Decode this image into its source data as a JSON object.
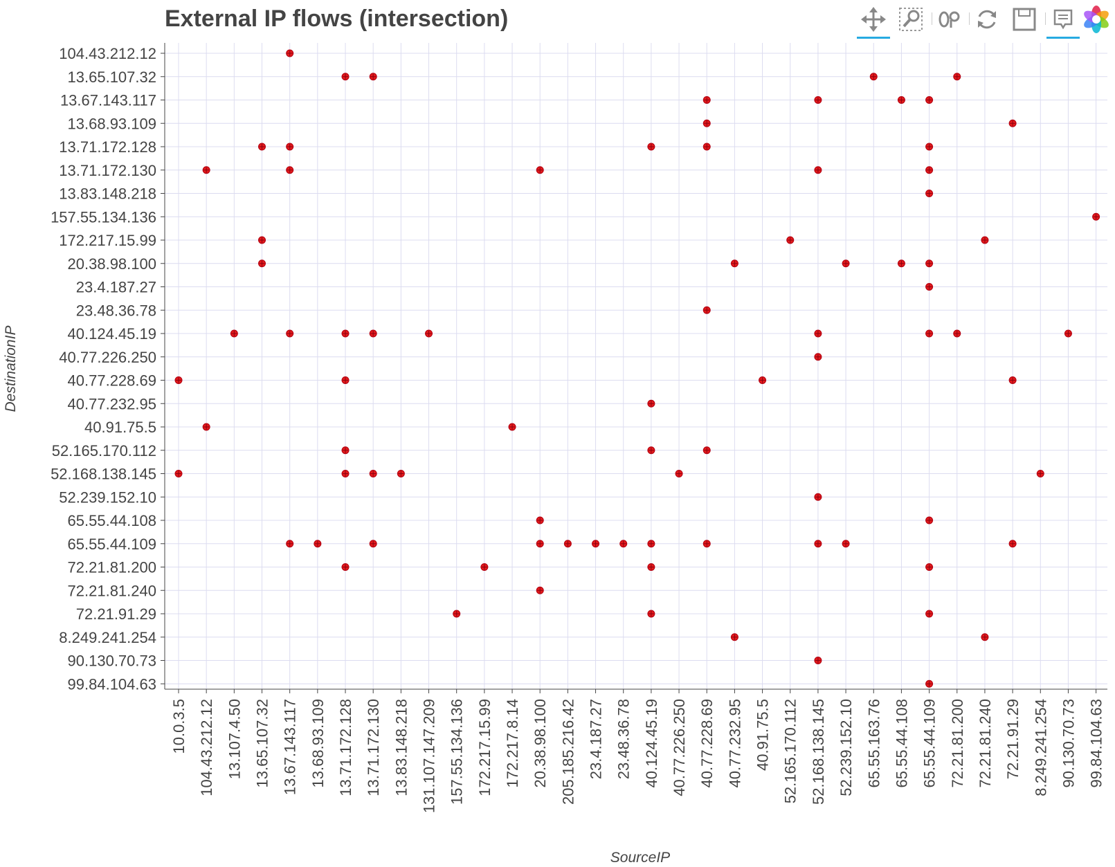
{
  "chart_data": {
    "type": "scatter",
    "title": "External IP flows (intersection)",
    "xlabel": "SourceIP",
    "ylabel": "DestinationIP",
    "grid": true,
    "marker_color": "#e31a1c",
    "grid_color": "#dcdcf0",
    "x_categories": [
      "10.0.3.5",
      "104.43.212.12",
      "13.107.4.50",
      "13.65.107.32",
      "13.67.143.117",
      "13.68.93.109",
      "13.71.172.128",
      "13.71.172.130",
      "13.83.148.218",
      "131.107.147.209",
      "157.55.134.136",
      "172.217.15.99",
      "172.217.8.14",
      "20.38.98.100",
      "205.185.216.42",
      "23.4.187.27",
      "23.48.36.78",
      "40.124.45.19",
      "40.77.226.250",
      "40.77.228.69",
      "40.77.232.95",
      "40.91.75.5",
      "52.165.170.112",
      "52.168.138.145",
      "52.239.152.10",
      "65.55.163.76",
      "65.55.44.108",
      "65.55.44.109",
      "72.21.81.200",
      "72.21.81.240",
      "72.21.91.29",
      "8.249.241.254",
      "90.130.70.73",
      "99.84.104.63"
    ],
    "y_categories": [
      "104.43.212.12",
      "13.65.107.32",
      "13.67.143.117",
      "13.68.93.109",
      "13.71.172.128",
      "13.71.172.130",
      "13.83.148.218",
      "157.55.134.136",
      "172.217.15.99",
      "20.38.98.100",
      "23.4.187.27",
      "23.48.36.78",
      "40.124.45.19",
      "40.77.226.250",
      "40.77.228.69",
      "40.77.232.95",
      "40.91.75.5",
      "52.165.170.112",
      "52.168.138.145",
      "52.239.152.10",
      "65.55.44.108",
      "65.55.44.109",
      "72.21.81.200",
      "72.21.81.240",
      "72.21.91.29",
      "8.249.241.254",
      "90.130.70.73",
      "99.84.104.63"
    ],
    "points": [
      {
        "x": "13.67.143.117",
        "y": "104.43.212.12"
      },
      {
        "x": "13.71.172.128",
        "y": "13.65.107.32"
      },
      {
        "x": "13.71.172.130",
        "y": "13.65.107.32"
      },
      {
        "x": "65.55.163.76",
        "y": "13.65.107.32"
      },
      {
        "x": "72.21.81.200",
        "y": "13.65.107.32"
      },
      {
        "x": "40.77.228.69",
        "y": "13.67.143.117"
      },
      {
        "x": "52.168.138.145",
        "y": "13.67.143.117"
      },
      {
        "x": "65.55.44.108",
        "y": "13.67.143.117"
      },
      {
        "x": "65.55.44.109",
        "y": "13.67.143.117"
      },
      {
        "x": "40.77.228.69",
        "y": "13.68.93.109"
      },
      {
        "x": "72.21.91.29",
        "y": "13.68.93.109"
      },
      {
        "x": "13.65.107.32",
        "y": "13.71.172.128"
      },
      {
        "x": "13.67.143.117",
        "y": "13.71.172.128"
      },
      {
        "x": "40.124.45.19",
        "y": "13.71.172.128"
      },
      {
        "x": "40.77.228.69",
        "y": "13.71.172.128"
      },
      {
        "x": "65.55.44.109",
        "y": "13.71.172.128"
      },
      {
        "x": "104.43.212.12",
        "y": "13.71.172.130"
      },
      {
        "x": "13.67.143.117",
        "y": "13.71.172.130"
      },
      {
        "x": "20.38.98.100",
        "y": "13.71.172.130"
      },
      {
        "x": "52.168.138.145",
        "y": "13.71.172.130"
      },
      {
        "x": "65.55.44.109",
        "y": "13.71.172.130"
      },
      {
        "x": "65.55.44.109",
        "y": "13.83.148.218"
      },
      {
        "x": "99.84.104.63",
        "y": "157.55.134.136"
      },
      {
        "x": "13.65.107.32",
        "y": "172.217.15.99"
      },
      {
        "x": "52.165.170.112",
        "y": "172.217.15.99"
      },
      {
        "x": "72.21.81.240",
        "y": "172.217.15.99"
      },
      {
        "x": "13.65.107.32",
        "y": "20.38.98.100"
      },
      {
        "x": "40.77.232.95",
        "y": "20.38.98.100"
      },
      {
        "x": "52.239.152.10",
        "y": "20.38.98.100"
      },
      {
        "x": "65.55.44.108",
        "y": "20.38.98.100"
      },
      {
        "x": "65.55.44.109",
        "y": "20.38.98.100"
      },
      {
        "x": "65.55.44.109",
        "y": "23.4.187.27"
      },
      {
        "x": "40.77.228.69",
        "y": "23.48.36.78"
      },
      {
        "x": "13.107.4.50",
        "y": "40.124.45.19"
      },
      {
        "x": "13.67.143.117",
        "y": "40.124.45.19"
      },
      {
        "x": "13.71.172.128",
        "y": "40.124.45.19"
      },
      {
        "x": "13.71.172.130",
        "y": "40.124.45.19"
      },
      {
        "x": "131.107.147.209",
        "y": "40.124.45.19"
      },
      {
        "x": "52.168.138.145",
        "y": "40.124.45.19"
      },
      {
        "x": "65.55.44.109",
        "y": "40.124.45.19"
      },
      {
        "x": "72.21.81.200",
        "y": "40.124.45.19"
      },
      {
        "x": "90.130.70.73",
        "y": "40.124.45.19"
      },
      {
        "x": "52.168.138.145",
        "y": "40.77.226.250"
      },
      {
        "x": "10.0.3.5",
        "y": "40.77.228.69"
      },
      {
        "x": "13.71.172.128",
        "y": "40.77.228.69"
      },
      {
        "x": "40.91.75.5",
        "y": "40.77.228.69"
      },
      {
        "x": "72.21.91.29",
        "y": "40.77.228.69"
      },
      {
        "x": "40.124.45.19",
        "y": "40.77.232.95"
      },
      {
        "x": "104.43.212.12",
        "y": "40.91.75.5"
      },
      {
        "x": "172.217.8.14",
        "y": "40.91.75.5"
      },
      {
        "x": "13.71.172.128",
        "y": "52.165.170.112"
      },
      {
        "x": "40.124.45.19",
        "y": "52.165.170.112"
      },
      {
        "x": "40.77.228.69",
        "y": "52.165.170.112"
      },
      {
        "x": "10.0.3.5",
        "y": "52.168.138.145"
      },
      {
        "x": "13.71.172.128",
        "y": "52.168.138.145"
      },
      {
        "x": "13.71.172.130",
        "y": "52.168.138.145"
      },
      {
        "x": "13.83.148.218",
        "y": "52.168.138.145"
      },
      {
        "x": "40.77.226.250",
        "y": "52.168.138.145"
      },
      {
        "x": "8.249.241.254",
        "y": "52.168.138.145"
      },
      {
        "x": "52.168.138.145",
        "y": "52.239.152.10"
      },
      {
        "x": "20.38.98.100",
        "y": "65.55.44.108"
      },
      {
        "x": "65.55.44.109",
        "y": "65.55.44.108"
      },
      {
        "x": "13.67.143.117",
        "y": "65.55.44.109"
      },
      {
        "x": "13.68.93.109",
        "y": "65.55.44.109"
      },
      {
        "x": "13.71.172.130",
        "y": "65.55.44.109"
      },
      {
        "x": "20.38.98.100",
        "y": "65.55.44.109"
      },
      {
        "x": "205.185.216.42",
        "y": "65.55.44.109"
      },
      {
        "x": "23.4.187.27",
        "y": "65.55.44.109"
      },
      {
        "x": "23.48.36.78",
        "y": "65.55.44.109"
      },
      {
        "x": "40.124.45.19",
        "y": "65.55.44.109"
      },
      {
        "x": "40.77.228.69",
        "y": "65.55.44.109"
      },
      {
        "x": "52.168.138.145",
        "y": "65.55.44.109"
      },
      {
        "x": "52.239.152.10",
        "y": "65.55.44.109"
      },
      {
        "x": "72.21.91.29",
        "y": "65.55.44.109"
      },
      {
        "x": "13.71.172.128",
        "y": "72.21.81.200"
      },
      {
        "x": "172.217.15.99",
        "y": "72.21.81.200"
      },
      {
        "x": "40.124.45.19",
        "y": "72.21.81.200"
      },
      {
        "x": "65.55.44.109",
        "y": "72.21.81.200"
      },
      {
        "x": "20.38.98.100",
        "y": "72.21.81.240"
      },
      {
        "x": "157.55.134.136",
        "y": "72.21.91.29"
      },
      {
        "x": "40.124.45.19",
        "y": "72.21.91.29"
      },
      {
        "x": "65.55.44.109",
        "y": "72.21.91.29"
      },
      {
        "x": "40.77.232.95",
        "y": "8.249.241.254"
      },
      {
        "x": "72.21.81.240",
        "y": "8.249.241.254"
      },
      {
        "x": "52.168.138.145",
        "y": "90.130.70.73"
      },
      {
        "x": "65.55.44.109",
        "y": "99.84.104.63"
      }
    ]
  },
  "toolbar": {
    "tools": [
      {
        "name": "pan-icon",
        "active": true
      },
      {
        "name": "box-zoom-icon",
        "active": false
      },
      {
        "name": "wheel-zoom-icon",
        "active": false
      },
      {
        "name": "reset-icon",
        "active": false
      },
      {
        "name": "save-icon",
        "active": false
      },
      {
        "name": "hover-icon",
        "active": true
      },
      {
        "name": "bokeh-logo-icon",
        "active": false
      }
    ]
  }
}
